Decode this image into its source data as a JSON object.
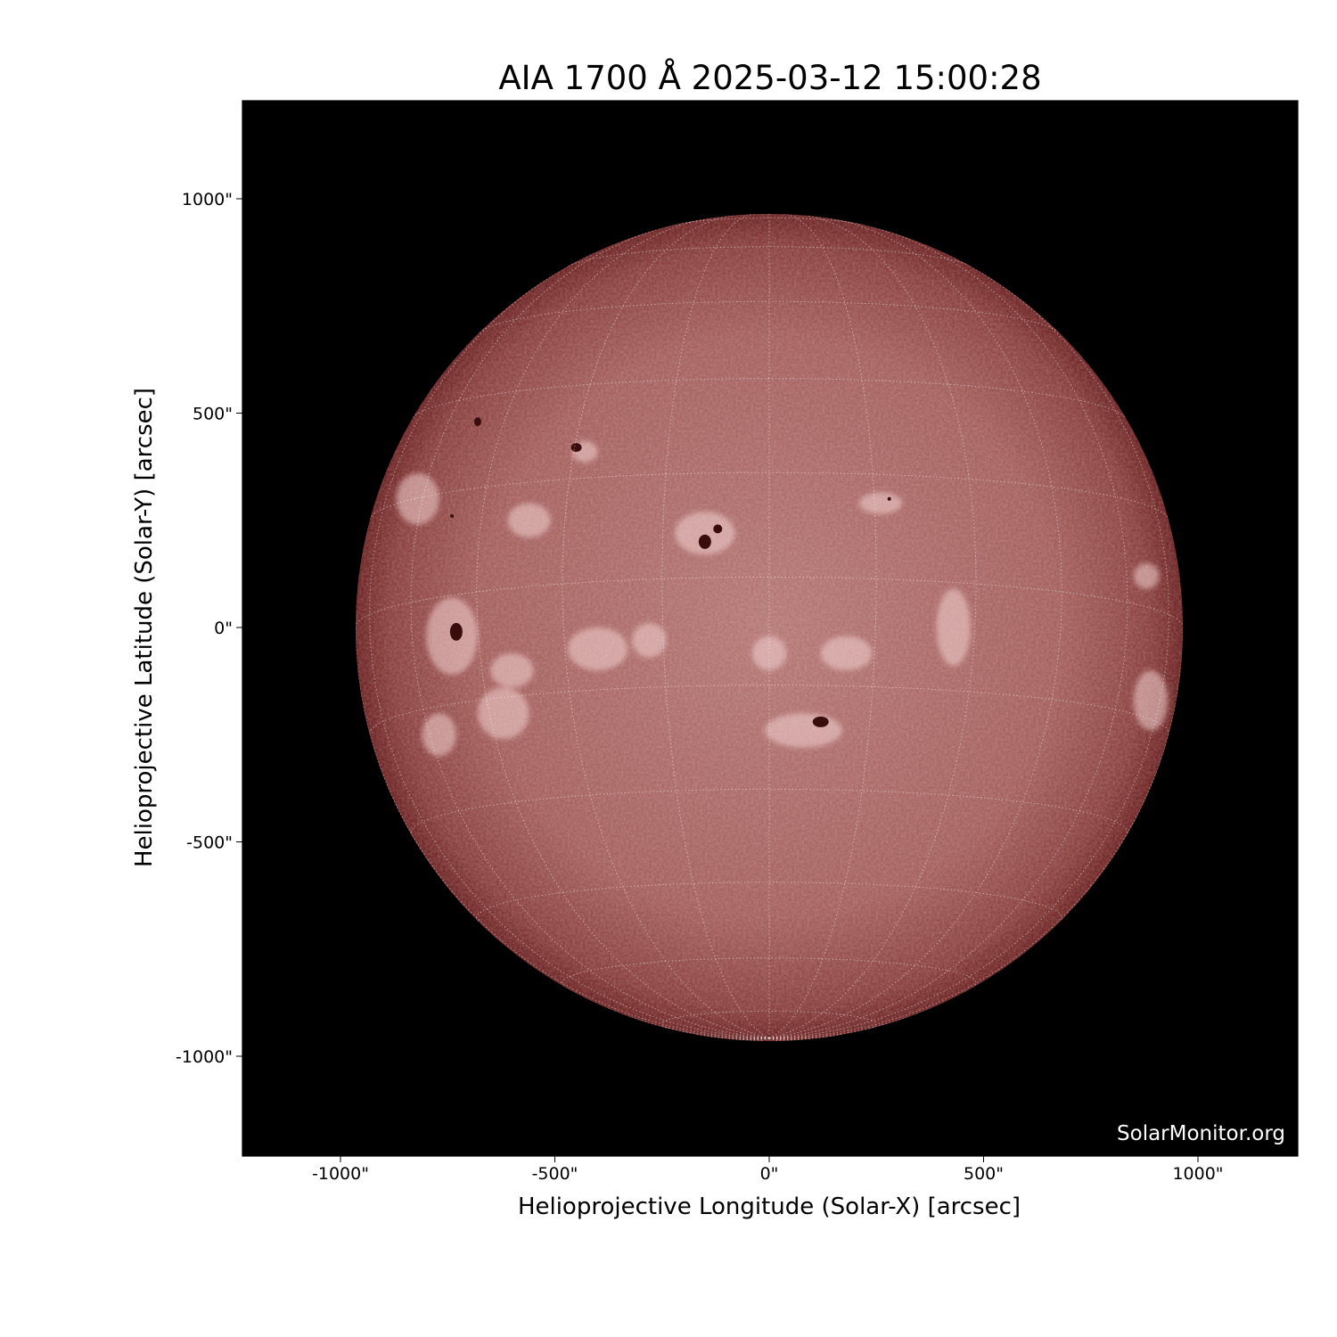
{
  "title": "AIA 1700 Å 2025-03-12 15:00:28",
  "watermark": "SolarMonitor.org",
  "chart_data": {
    "type": "image",
    "title": "AIA 1700 Å 2025-03-12 15:00:28",
    "xlabel": "Helioprojective Longitude (Solar-X) [arcsec]",
    "ylabel": "Helioprojective Latitude (Solar-Y) [arcsec]",
    "xlim": [
      -1230,
      1230
    ],
    "ylim": [
      -1230,
      1230
    ],
    "xticks": [
      "-1000\"",
      "-500\"",
      "0\"",
      "500\"",
      "1000\""
    ],
    "yticks": [
      "1000\"",
      "500\"",
      "0\"",
      "-500\"",
      "-1000\""
    ],
    "xtick_values": [
      -1000,
      -500,
      0,
      500,
      1000
    ],
    "ytick_values": [
      1000,
      500,
      0,
      -500,
      -1000
    ],
    "solar_radius_arcsec": 965,
    "grid": "heliographic graticule, 15° spacing, dotted white",
    "colormap": "sdoaia1700",
    "background_color": "#000000",
    "disk_center_color": "#b57a78",
    "disk_limb_color": "#6e2626"
  }
}
